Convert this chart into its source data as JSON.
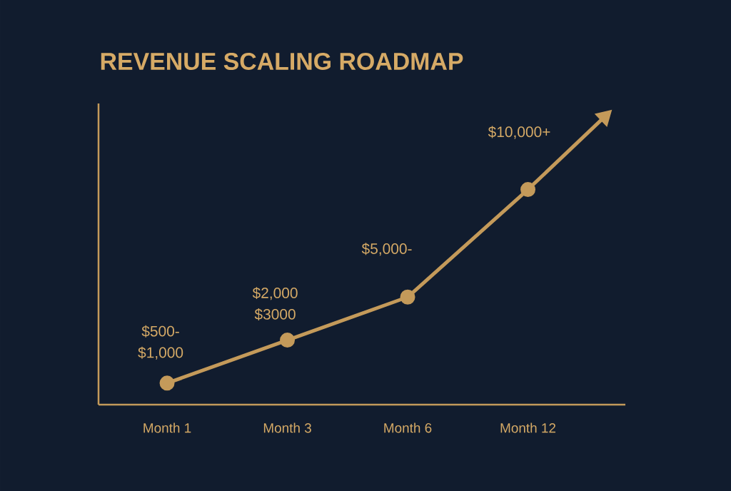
{
  "chart_data": {
    "type": "line",
    "title": "REVENUE SCALING ROADMAP",
    "categories": [
      "Month 1",
      "Month 3",
      "Month 6",
      "Month 12"
    ],
    "values": [
      1000,
      3000,
      5000,
      10000
    ],
    "ylim": [
      0,
      14000
    ],
    "color": "#c49a5a",
    "marker": "circle",
    "value_labels": [
      "$500- $1,000",
      "$2,000 $3000",
      "$5,000-",
      "$10,000+"
    ]
  }
}
